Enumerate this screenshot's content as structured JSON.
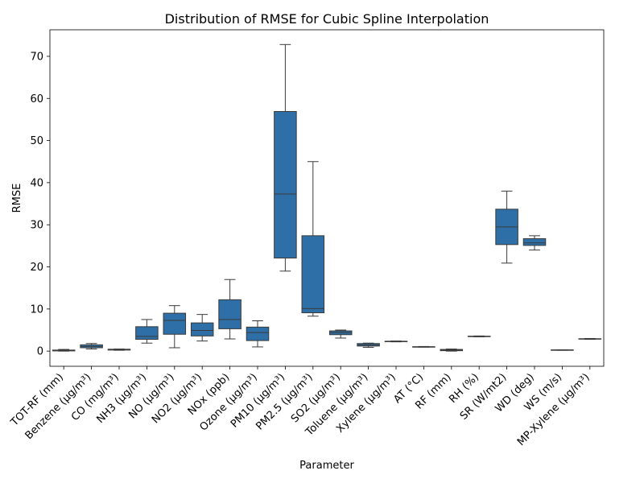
{
  "chart_data": {
    "type": "box",
    "title": "Distribution of RMSE for Cubic Spline Interpolation",
    "xlabel": "Parameter",
    "ylabel": "RMSE",
    "ylim": [
      -3.6,
      76.3
    ],
    "yticks": [
      0,
      10,
      20,
      30,
      40,
      50,
      60,
      70
    ],
    "color": "#2d6fa6",
    "line_color": "#3a3a3a",
    "categories": [
      "TOT-RF (mm)",
      "Benzene (µg/m³)",
      "CO (mg/m³)",
      "NH3 (µg/m³)",
      "NO (µg/m³)",
      "NO2 (µg/m³)",
      "NOx (ppb)",
      "Ozone (µg/m³)",
      "PM10 (µg/m³)",
      "PM2.5 (µg/m³)",
      "SO2 (µg/m³)",
      "Toluene (µg/m³)",
      "Xylene (µg/m³)",
      "AT (°C)",
      "RF (mm)",
      "RH (%)",
      "SR (W/mt2)",
      "WD (deg)",
      "WS (m/s)",
      "MP-Xylene (µg/m³)"
    ],
    "boxes": [
      {
        "min": 0.0,
        "q1": 0.05,
        "median": 0.15,
        "q3": 0.25,
        "max": 0.4
      },
      {
        "min": 0.5,
        "q1": 0.8,
        "median": 1.1,
        "q3": 1.5,
        "max": 1.8
      },
      {
        "min": 0.2,
        "q1": 0.25,
        "median": 0.35,
        "q3": 0.45,
        "max": 0.5
      },
      {
        "min": 1.9,
        "q1": 2.8,
        "median": 3.5,
        "q3": 5.8,
        "max": 7.5
      },
      {
        "min": 0.8,
        "q1": 4.0,
        "median": 7.3,
        "q3": 9.0,
        "max": 10.8
      },
      {
        "min": 2.4,
        "q1": 3.6,
        "median": 4.9,
        "q3": 6.7,
        "max": 8.7
      },
      {
        "min": 2.9,
        "q1": 5.3,
        "median": 7.5,
        "q3": 12.2,
        "max": 17.0
      },
      {
        "min": 1.0,
        "q1": 2.5,
        "median": 4.4,
        "q3": 5.7,
        "max": 7.2
      },
      {
        "min": 19.0,
        "q1": 22.1,
        "median": 37.3,
        "q3": 56.9,
        "max": 72.8
      },
      {
        "min": 8.3,
        "q1": 9.1,
        "median": 10.1,
        "q3": 27.4,
        "max": 45.0
      },
      {
        "min": 3.1,
        "q1": 3.9,
        "median": 4.4,
        "q3": 4.8,
        "max": 5.0
      },
      {
        "min": 0.9,
        "q1": 1.2,
        "median": 1.5,
        "q3": 1.8,
        "max": 1.9
      },
      {
        "min": 2.2,
        "q1": 2.25,
        "median": 2.3,
        "q3": 2.35,
        "max": 2.4
      },
      {
        "min": 0.95,
        "q1": 1.0,
        "median": 1.0,
        "q3": 1.05,
        "max": 1.1
      },
      {
        "min": 0.0,
        "q1": 0.1,
        "median": 0.25,
        "q3": 0.4,
        "max": 0.5
      },
      {
        "min": 3.4,
        "q1": 3.45,
        "median": 3.5,
        "q3": 3.55,
        "max": 3.6
      },
      {
        "min": 20.9,
        "q1": 25.3,
        "median": 29.5,
        "q3": 33.7,
        "max": 38.0
      },
      {
        "min": 24.0,
        "q1": 25.1,
        "median": 25.7,
        "q3": 26.7,
        "max": 27.4
      },
      {
        "min": 0.2,
        "q1": 0.2,
        "median": 0.25,
        "q3": 0.3,
        "max": 0.3
      },
      {
        "min": 2.8,
        "q1": 2.85,
        "median": 2.9,
        "q3": 2.95,
        "max": 3.0
      }
    ]
  }
}
